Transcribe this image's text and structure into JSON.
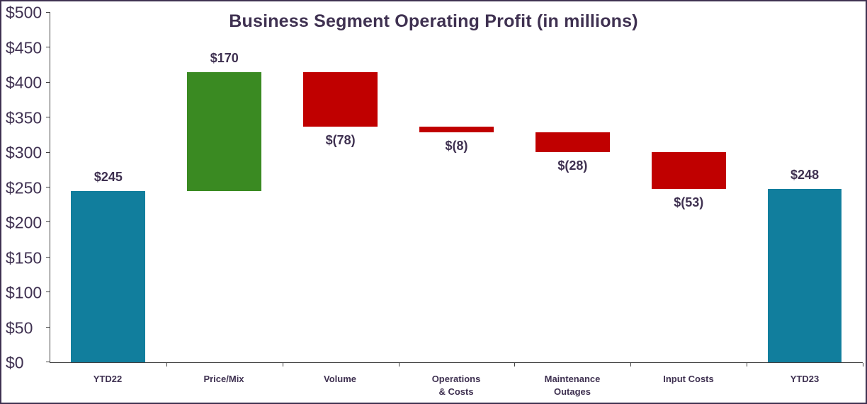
{
  "colors": {
    "total": "#117e9d",
    "increase": "#3a8a22",
    "decrease": "#c00000",
    "text": "#3f3151",
    "border": "#3f3151",
    "axis": "#404040"
  },
  "chart_data": {
    "type": "bar",
    "subtype": "waterfall",
    "title": "Business Segment Operating Profit (in millions)",
    "categories": [
      "YTD22",
      "Price/Mix",
      "Volume",
      "Operations\n& Costs",
      "Maintenance\nOutages",
      "Input Costs",
      "YTD23"
    ],
    "values": [
      245,
      170,
      -78,
      -8,
      -28,
      -53,
      248
    ],
    "bar_types": [
      "total",
      "increase",
      "decrease",
      "decrease",
      "decrease",
      "decrease",
      "total"
    ],
    "labels": [
      "$245",
      "$170",
      "$(78)",
      "$(8)",
      "$(28)",
      "$(53)",
      "$248"
    ],
    "running_totals": [
      245,
      415,
      337,
      329,
      301,
      248,
      248
    ],
    "xlabel": "",
    "ylabel": "",
    "ylim": [
      0,
      500
    ],
    "ytick_step": 50,
    "ytick_labels": [
      "$0",
      "$50",
      "$100",
      "$150",
      "$200",
      "$250",
      "$300",
      "$350",
      "$400",
      "$450",
      "$500"
    ],
    "grid": false,
    "legend": false
  }
}
